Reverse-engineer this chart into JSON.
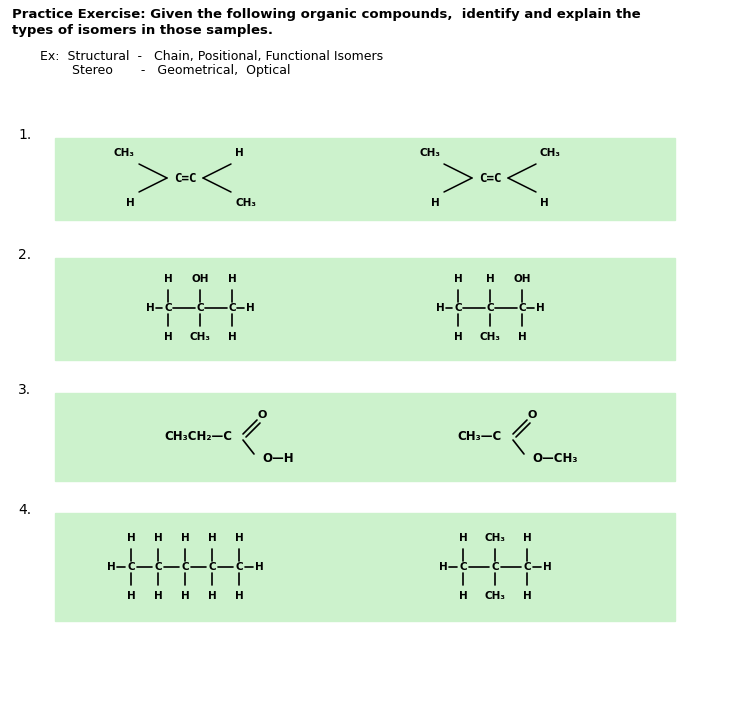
{
  "title_line1": "Practice Exercise: Given the following organic compounds,  identify and explain the",
  "title_line2": "types of isomers in those samples.",
  "ex_line1": "Ex:  Structural  -   Chain, Positional, Functional Isomers",
  "ex_line2": "        Stereo       -   Geometrical,  Optical",
  "box_color": "#ccf2cc",
  "bg_color": "#ffffff",
  "fig_w": 7.45,
  "fig_h": 7.03,
  "dpi": 100
}
